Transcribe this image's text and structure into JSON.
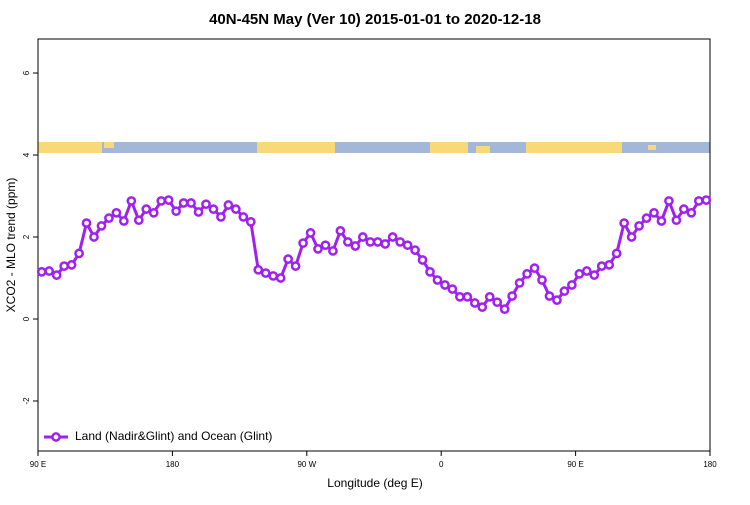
{
  "chart_data": {
    "type": "line",
    "title": "40N-45N May (Ver 10)   2015-01-01 to 2020-12-18",
    "x_label": "Longitude (deg E)",
    "y_label": "XCO2 - MLO trend (ppm)",
    "xlim": [
      90,
      540
    ],
    "ylim": [
      -3.22,
      6.83
    ],
    "xticks": [
      {
        "value": 90,
        "label": "90 E"
      },
      180,
      {
        "value": 270,
        "label": "90 W"
      },
      {
        "value": 360,
        "label": "0"
      },
      {
        "value": 450,
        "label": "90 E"
      },
      {
        "value": 540,
        "label": "180"
      }
    ],
    "yticks": [
      -2,
      0,
      2,
      4,
      6
    ],
    "legend": "bottom-left",
    "x": [
      92.5,
      97.5,
      102.5,
      107.5,
      112.5,
      117.5,
      122.5,
      127.5,
      132.5,
      137.5,
      142.5,
      147.5,
      152.5,
      157.5,
      162.5,
      167.5,
      172.5,
      177.5,
      182.5,
      187.5,
      192.5,
      197.5,
      202.5,
      207.5,
      212.5,
      217.5,
      222.5,
      227.5,
      232.5,
      237.5,
      242.5,
      247.5,
      252.5,
      257.5,
      262.5,
      267.5,
      272.5,
      277.5,
      282.5,
      287.5,
      292.5,
      297.5,
      302.5,
      307.5,
      312.5,
      317.5,
      322.5,
      327.5,
      332.5,
      337.5,
      342.5,
      347.5,
      352.5,
      357.5,
      362.5,
      367.5,
      372.5,
      377.5,
      382.5,
      387.5,
      392.5,
      397.5,
      402.5,
      407.5,
      412.5,
      417.5,
      422.5,
      427.5,
      432.5,
      437.5,
      442.5,
      447.5,
      452.5,
      457.5,
      462.5,
      467.5,
      472.5,
      477.5,
      482.5,
      487.5,
      492.5,
      497.5,
      502.5,
      507.5,
      512.5,
      517.5,
      522.5,
      527.5,
      532.5,
      537.5
    ],
    "series": [
      {
        "name": "Land (Nadir&Glint) and Ocean (Glint)",
        "color": "#a020f0",
        "values": [
          1.15,
          1.17,
          1.07,
          1.29,
          1.32,
          1.6,
          2.34,
          2.0,
          2.27,
          2.46,
          2.59,
          2.39,
          2.88,
          2.41,
          2.68,
          2.59,
          2.88,
          2.9,
          2.63,
          2.83,
          2.83,
          2.61,
          2.8,
          2.68,
          2.49,
          2.78,
          2.68,
          2.49,
          2.37,
          1.2,
          1.12,
          1.05,
          1.0,
          1.46,
          1.29,
          1.85,
          2.1,
          1.71,
          1.8,
          1.66,
          2.15,
          1.88,
          1.78,
          2.0,
          1.88,
          1.88,
          1.83,
          2.0,
          1.88,
          1.8,
          1.68,
          1.44,
          1.15,
          0.95,
          0.83,
          0.73,
          0.54,
          0.54,
          0.39,
          0.29,
          0.54,
          0.41,
          0.24,
          0.56,
          0.88,
          1.1,
          1.24,
          0.95,
          0.56,
          0.46,
          0.68,
          0.83,
          1.1,
          1.17,
          1.07,
          1.29,
          1.32,
          1.6,
          2.34,
          2.0,
          2.27,
          2.46,
          2.59,
          2.39,
          2.88,
          2.41,
          2.68,
          2.59,
          2.88,
          2.9
        ]
      }
    ]
  }
}
